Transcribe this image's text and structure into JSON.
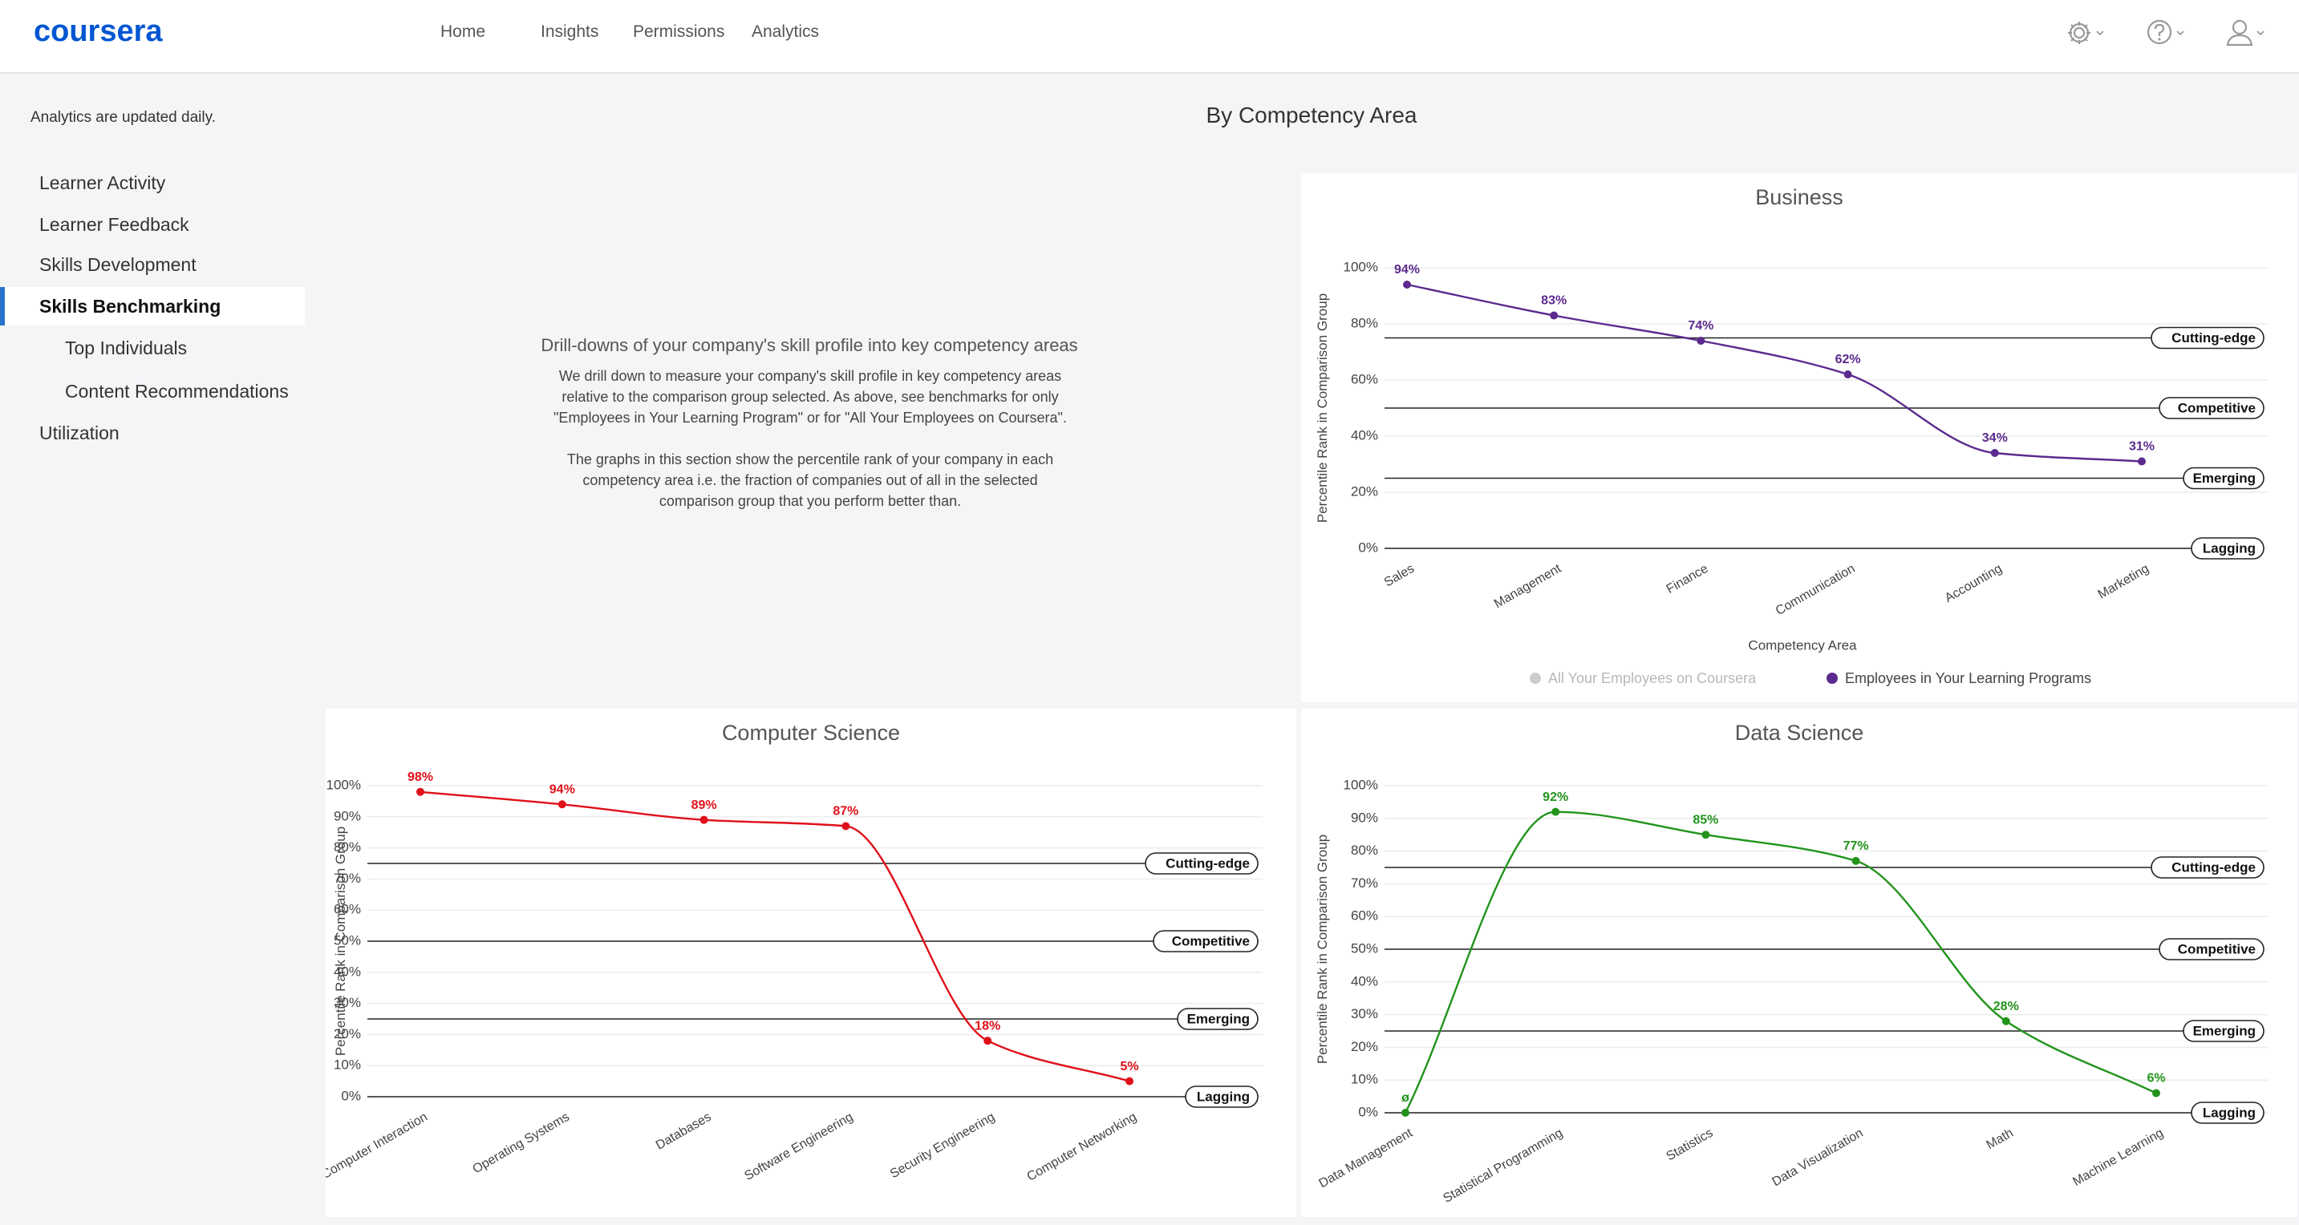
{
  "app": {
    "logo": "coursera",
    "nav": [
      "Home",
      "Insights",
      "Permissions",
      "Analytics"
    ],
    "icons": [
      "gear-icon",
      "help-icon",
      "user-icon"
    ]
  },
  "sidebar": {
    "note": "Analytics are updated daily.",
    "items": [
      {
        "label": "Learner Activity",
        "level": 0,
        "active": false
      },
      {
        "label": "Learner Feedback",
        "level": 0,
        "active": false
      },
      {
        "label": "Skills Development",
        "level": 0,
        "active": false
      },
      {
        "label": "Skills Benchmarking",
        "level": 0,
        "active": true
      },
      {
        "label": "Top Individuals",
        "level": 1,
        "active": false
      },
      {
        "label": "Content Recommendations",
        "level": 1,
        "active": false
      },
      {
        "label": "Utilization",
        "level": 0,
        "active": false
      }
    ]
  },
  "main": {
    "title": "By Competency Area",
    "description": {
      "heading": "Drill-downs of your company's skill profile into key competency areas",
      "paragraph1": "We drill down to measure your company's skill profile in key competency areas relative to the comparison group selected. As above, see benchmarks for only \"Employees in Your Learning Program\" or for \"All Your Employees on Coursera\".",
      "paragraph2": "The graphs in this section show the percentile rank of your company in each competency area i.e. the fraction of companies out of all in the selected comparison group that you perform better than."
    }
  },
  "chart_data": [
    {
      "type": "line",
      "title": "Business",
      "xlabel": "Competency Area",
      "ylabel": "Percentile Rank in Comparison Group",
      "categories": [
        "Sales",
        "Management",
        "Finance",
        "Communication",
        "Accounting",
        "Marketing"
      ],
      "series": [
        {
          "name": "Employees in Your Learning Programs",
          "color": "#5b2a8e",
          "values": [
            94,
            83,
            74,
            62,
            34,
            31
          ],
          "labels": [
            "94%",
            "83%",
            "74%",
            "62%",
            "34%",
            "31%"
          ]
        }
      ],
      "ylim": [
        0,
        100
      ],
      "yticks": [
        "0%",
        "20%",
        "40%",
        "60%",
        "80%",
        "100%"
      ],
      "bands": [
        {
          "label": "Cutting-edge",
          "value": 75
        },
        {
          "label": "Competitive",
          "value": 50
        },
        {
          "label": "Emerging",
          "value": 25
        },
        {
          "label": "Lagging",
          "value": 0
        }
      ],
      "legend": [
        {
          "label": "All Your Employees on Coursera",
          "color": "#cccccc"
        },
        {
          "label": "Employees in Your Learning Programs",
          "color": "#5b2a8e"
        }
      ],
      "legend_position": "bottom"
    },
    {
      "type": "line",
      "title": "Computer Science",
      "ylabel": "Percentile Rank in Comparison Group",
      "categories": [
        "Human Computer Interaction",
        "Operating Systems",
        "Databases",
        "Software Engineering",
        "Security Engineering",
        "Computer Networking"
      ],
      "series": [
        {
          "color": "#e0101a",
          "values": [
            98,
            94,
            89,
            87,
            18,
            5
          ],
          "labels": [
            "98%",
            "94%",
            "89%",
            "87%",
            "18%",
            "5%"
          ]
        }
      ],
      "ylim": [
        0,
        100
      ],
      "yticks": [
        "0%",
        "10%",
        "20%",
        "30%",
        "40%",
        "50%",
        "60%",
        "70%",
        "80%",
        "90%",
        "100%"
      ],
      "bands": [
        {
          "label": "Cutting-edge",
          "value": 75
        },
        {
          "label": "Competitive",
          "value": 50
        },
        {
          "label": "Emerging",
          "value": 25
        },
        {
          "label": "Lagging",
          "value": 0
        }
      ]
    },
    {
      "type": "line",
      "title": "Data Science",
      "ylabel": "Percentile Rank in Comparison Group",
      "categories": [
        "Data Management",
        "Statistical Programming",
        "Statistics",
        "Data Visualization",
        "Math",
        "Machine Learning"
      ],
      "series": [
        {
          "color": "#22941c",
          "values": [
            0,
            92,
            85,
            77,
            28,
            6
          ],
          "labels": [
            "ø",
            "92%",
            "85%",
            "77%",
            "28%",
            "6%"
          ]
        }
      ],
      "ylim": [
        0,
        100
      ],
      "yticks": [
        "0%",
        "10%",
        "20%",
        "30%",
        "40%",
        "50%",
        "60%",
        "70%",
        "80%",
        "90%",
        "100%"
      ],
      "bands": [
        {
          "label": "Cutting-edge",
          "value": 75
        },
        {
          "label": "Competitive",
          "value": 50
        },
        {
          "label": "Emerging",
          "value": 25
        },
        {
          "label": "Lagging",
          "value": 0
        }
      ]
    }
  ]
}
